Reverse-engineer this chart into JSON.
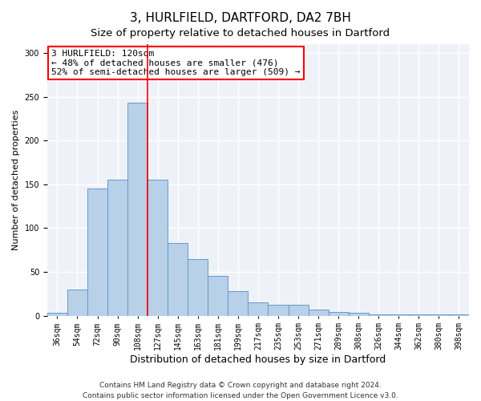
{
  "title1": "3, HURLFIELD, DARTFORD, DA2 7BH",
  "title2": "Size of property relative to detached houses in Dartford",
  "xlabel": "Distribution of detached houses by size in Dartford",
  "ylabel": "Number of detached properties",
  "categories": [
    "36sqm",
    "54sqm",
    "72sqm",
    "90sqm",
    "108sqm",
    "127sqm",
    "145sqm",
    "163sqm",
    "181sqm",
    "199sqm",
    "217sqm",
    "235sqm",
    "253sqm",
    "271sqm",
    "289sqm",
    "308sqm",
    "326sqm",
    "344sqm",
    "362sqm",
    "380sqm",
    "398sqm"
  ],
  "values": [
    3,
    30,
    145,
    155,
    243,
    155,
    83,
    65,
    45,
    28,
    15,
    12,
    12,
    7,
    4,
    3,
    1,
    1,
    1,
    1,
    1
  ],
  "bar_color": "#b8d0e8",
  "bar_edge_color": "#6699cc",
  "vline_color": "red",
  "vline_index": 4.5,
  "annotation_text": "3 HURLFIELD: 120sqm\n← 48% of detached houses are smaller (476)\n52% of semi-detached houses are larger (509) →",
  "annotation_box_color": "white",
  "annotation_edge_color": "red",
  "footer1": "Contains HM Land Registry data © Crown copyright and database right 2024.",
  "footer2": "Contains public sector information licensed under the Open Government Licence v3.0.",
  "ylim": [
    0,
    310
  ],
  "yticks": [
    0,
    50,
    100,
    150,
    200,
    250,
    300
  ],
  "background_color": "#eef2f8",
  "grid_color": "white",
  "title1_fontsize": 11,
  "title2_fontsize": 9.5,
  "xlabel_fontsize": 9,
  "ylabel_fontsize": 8,
  "tick_fontsize": 7,
  "annotation_fontsize": 8,
  "footer_fontsize": 6.5
}
